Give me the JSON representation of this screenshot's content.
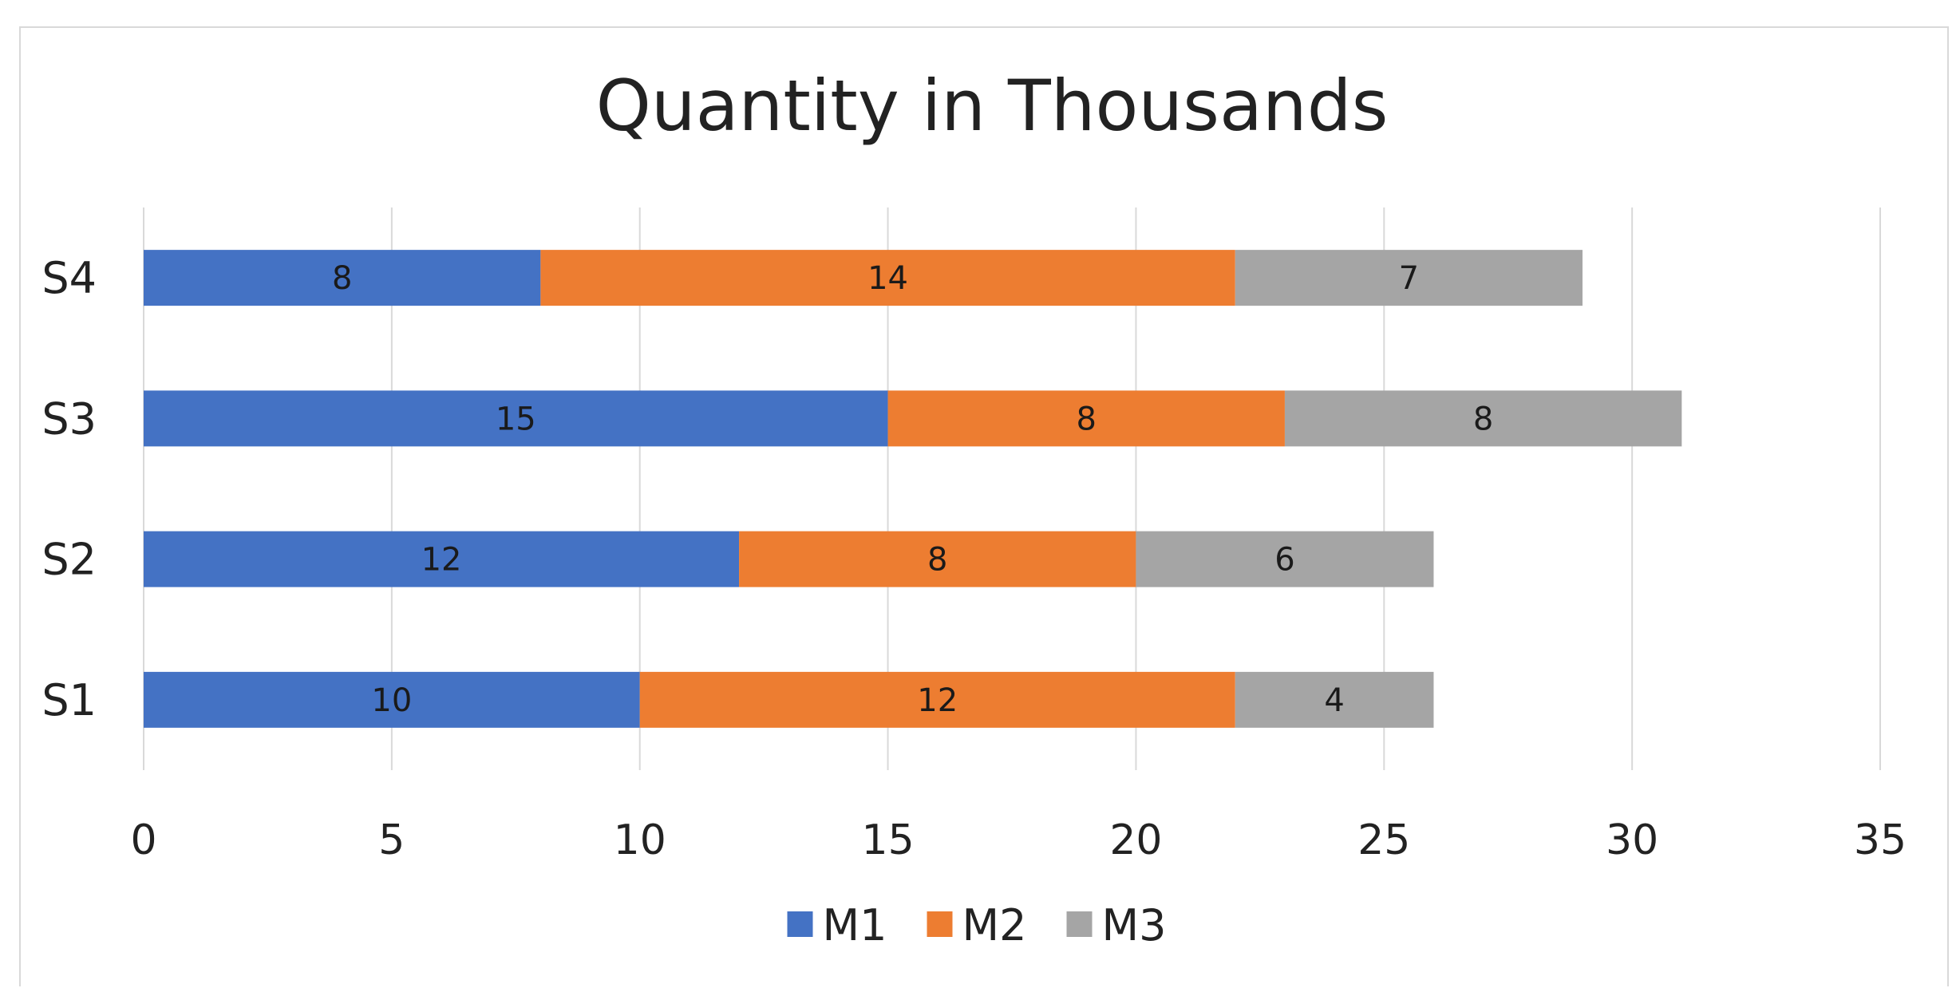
{
  "chart_data": {
    "type": "bar",
    "orientation": "horizontal",
    "stacked": true,
    "title": "Quantity in Thousands",
    "categories": [
      "S1",
      "S2",
      "S3",
      "S4"
    ],
    "series": [
      {
        "name": "M1",
        "color": "#4472c4",
        "values": [
          10,
          12,
          15,
          8
        ]
      },
      {
        "name": "M2",
        "color": "#ed7d31",
        "values": [
          12,
          8,
          8,
          14
        ]
      },
      {
        "name": "M3",
        "color": "#a5a5a5",
        "values": [
          4,
          6,
          8,
          7
        ]
      }
    ],
    "xlim": [
      0,
      35
    ],
    "xticks": [
      0,
      5,
      10,
      15,
      20,
      25,
      30,
      35
    ],
    "xlabel": "",
    "ylabel": "",
    "grid": "vertical",
    "legend": "bottom",
    "data_labels": true
  }
}
